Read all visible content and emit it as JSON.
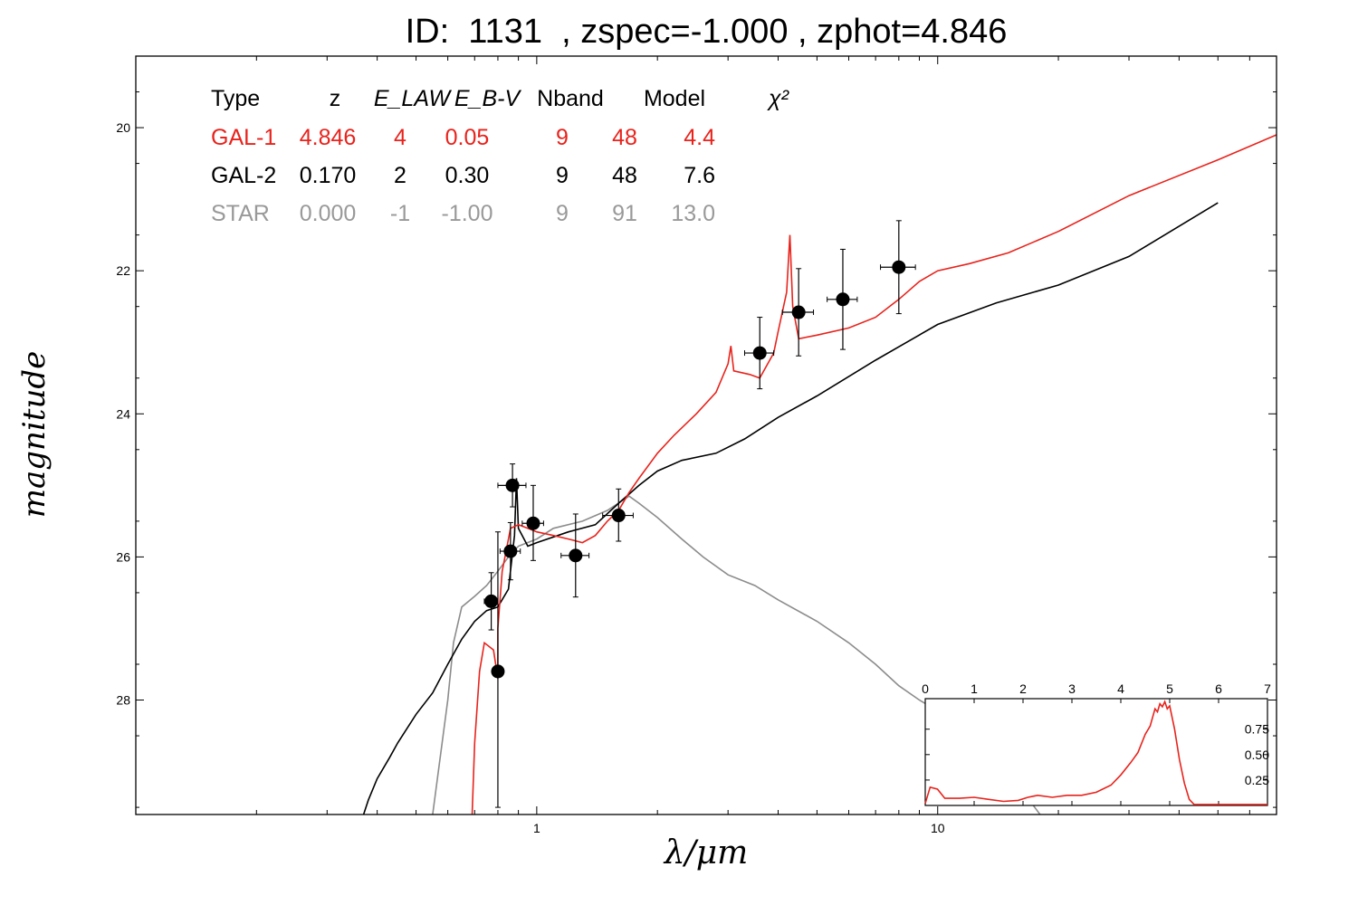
{
  "title": "ID:  1131  , zspec=-1.000 , zphot=4.846",
  "colors": {
    "gal1": "#e8231c",
    "gal2": "#000000",
    "star": "#8c8c8c",
    "photometry": "#000000"
  },
  "table": {
    "headers": [
      "Type",
      "z",
      "E_LAW",
      "E_B-V",
      "Nband",
      "Model",
      "χ²"
    ],
    "rows": [
      {
        "cells": [
          "GAL-1",
          "4.846",
          "4",
          "0.05",
          "9",
          "48",
          "4.4"
        ],
        "color": "#e8231c"
      },
      {
        "cells": [
          "GAL-2",
          "0.170",
          "2",
          "0.30",
          "9",
          "48",
          "7.6"
        ],
        "color": "#000000"
      },
      {
        "cells": [
          "STAR",
          "0.000",
          "-1",
          "-1.00",
          "9",
          "91",
          "13.0"
        ],
        "color": "#999999"
      }
    ]
  },
  "chart_data": [
    {
      "type": "line",
      "xlabel": "λ/μm",
      "ylabel": "magnitude",
      "xscale": "log",
      "xlim": [
        0.1,
        70
      ],
      "ylim": [
        29.6,
        19.0
      ],
      "y_inverted": true,
      "x_ticks": [
        1,
        10
      ],
      "y_ticks": [
        20,
        22,
        24,
        26,
        28
      ],
      "series": [
        {
          "key": "gal1",
          "name": "GAL-1",
          "color": "#e8231c",
          "points": [
            [
              0.69,
              29.6
            ],
            [
              0.7,
              28.6
            ],
            [
              0.72,
              27.6
            ],
            [
              0.74,
              27.2
            ],
            [
              0.76,
              27.25
            ],
            [
              0.78,
              27.3
            ],
            [
              0.8,
              27.7
            ],
            [
              0.8,
              27.0
            ],
            [
              0.82,
              26.2
            ],
            [
              0.84,
              25.9
            ],
            [
              0.86,
              25.6
            ],
            [
              0.9,
              25.55
            ],
            [
              0.95,
              25.6
            ],
            [
              1.0,
              25.65
            ],
            [
              1.1,
              25.7
            ],
            [
              1.2,
              25.75
            ],
            [
              1.3,
              25.8
            ],
            [
              1.4,
              25.7
            ],
            [
              1.5,
              25.5
            ],
            [
              1.6,
              25.35
            ],
            [
              1.7,
              25.1
            ],
            [
              1.8,
              24.9
            ],
            [
              2.0,
              24.55
            ],
            [
              2.2,
              24.3
            ],
            [
              2.5,
              24.0
            ],
            [
              2.8,
              23.7
            ],
            [
              3.0,
              23.3
            ],
            [
              3.05,
              23.05
            ],
            [
              3.1,
              23.4
            ],
            [
              3.4,
              23.45
            ],
            [
              3.6,
              23.5
            ],
            [
              3.9,
              23.15
            ],
            [
              4.0,
              22.85
            ],
            [
              4.2,
              22.3
            ],
            [
              4.28,
              21.5
            ],
            [
              4.35,
              22.5
            ],
            [
              4.5,
              22.95
            ],
            [
              5.0,
              22.9
            ],
            [
              6.0,
              22.8
            ],
            [
              7.0,
              22.65
            ],
            [
              8.0,
              22.4
            ],
            [
              9.0,
              22.15
            ],
            [
              10,
              22.0
            ],
            [
              12,
              21.9
            ],
            [
              15,
              21.75
            ],
            [
              20,
              21.45
            ],
            [
              30,
              20.95
            ],
            [
              50,
              20.45
            ],
            [
              70,
              20.1
            ]
          ]
        },
        {
          "key": "gal2",
          "name": "GAL-2",
          "color": "#000000",
          "points": [
            [
              0.37,
              29.6
            ],
            [
              0.38,
              29.4
            ],
            [
              0.4,
              29.1
            ],
            [
              0.43,
              28.8
            ],
            [
              0.45,
              28.6
            ],
            [
              0.5,
              28.2
            ],
            [
              0.55,
              27.9
            ],
            [
              0.6,
              27.5
            ],
            [
              0.65,
              27.15
            ],
            [
              0.7,
              26.9
            ],
            [
              0.75,
              26.75
            ],
            [
              0.8,
              26.7
            ],
            [
              0.85,
              26.45
            ],
            [
              0.88,
              25.7
            ],
            [
              0.89,
              24.9
            ],
            [
              0.9,
              25.6
            ],
            [
              0.95,
              25.85
            ],
            [
              1.0,
              25.8
            ],
            [
              1.2,
              25.65
            ],
            [
              1.4,
              25.55
            ],
            [
              1.6,
              25.25
            ],
            [
              1.8,
              25.0
            ],
            [
              2.0,
              24.8
            ],
            [
              2.3,
              24.65
            ],
            [
              2.8,
              24.55
            ],
            [
              3.3,
              24.35
            ],
            [
              4.0,
              24.05
            ],
            [
              5.0,
              23.75
            ],
            [
              7.0,
              23.25
            ],
            [
              10,
              22.75
            ],
            [
              14,
              22.45
            ],
            [
              20,
              22.2
            ],
            [
              30,
              21.8
            ],
            [
              50,
              21.05
            ]
          ]
        },
        {
          "key": "star",
          "name": "STAR",
          "color": "#8c8c8c",
          "points": [
            [
              0.55,
              29.6
            ],
            [
              0.6,
              28.0
            ],
            [
              0.62,
              27.2
            ],
            [
              0.65,
              26.7
            ],
            [
              0.7,
              26.55
            ],
            [
              0.75,
              26.4
            ],
            [
              0.8,
              26.2
            ],
            [
              0.85,
              26.0
            ],
            [
              0.9,
              25.85
            ],
            [
              1.0,
              25.75
            ],
            [
              1.1,
              25.6
            ],
            [
              1.3,
              25.5
            ],
            [
              1.5,
              25.35
            ],
            [
              1.7,
              25.15
            ],
            [
              1.8,
              25.25
            ],
            [
              2.0,
              25.45
            ],
            [
              2.3,
              25.75
            ],
            [
              2.6,
              26.0
            ],
            [
              3.0,
              26.25
            ],
            [
              3.5,
              26.4
            ],
            [
              4.0,
              26.6
            ],
            [
              5.0,
              26.9
            ],
            [
              6.0,
              27.2
            ],
            [
              7.0,
              27.5
            ],
            [
              8.0,
              27.8
            ],
            [
              9.0,
              28.0
            ],
            [
              10,
              28.15
            ],
            [
              12,
              28.5
            ],
            [
              15,
              29.0
            ],
            [
              18,
              29.6
            ]
          ]
        }
      ],
      "photometry": [
        {
          "x": 0.77,
          "y": 26.62,
          "xerr": [
            0.74,
            0.8
          ],
          "yerr": [
            26.22,
            27.02
          ]
        },
        {
          "x": 0.8,
          "y": 27.6,
          "xerr": [
            0.78,
            0.82
          ],
          "yerr": [
            25.65,
            29.5
          ]
        },
        {
          "x": 0.86,
          "y": 25.92,
          "xerr": [
            0.81,
            0.91
          ],
          "yerr": [
            25.52,
            26.32
          ]
        },
        {
          "x": 0.87,
          "y": 25.0,
          "xerr": [
            0.8,
            0.94
          ],
          "yerr": [
            24.7,
            25.3
          ]
        },
        {
          "x": 0.98,
          "y": 25.53,
          "xerr": [
            0.92,
            1.04
          ],
          "yerr": [
            25.0,
            26.05
          ]
        },
        {
          "x": 1.25,
          "y": 25.98,
          "xerr": [
            1.15,
            1.35
          ],
          "yerr": [
            25.4,
            26.56
          ]
        },
        {
          "x": 1.6,
          "y": 25.42,
          "xerr": [
            1.46,
            1.74
          ],
          "yerr": [
            25.05,
            25.78
          ]
        },
        {
          "x": 3.6,
          "y": 23.15,
          "xerr": [
            3.3,
            3.9
          ],
          "yerr": [
            22.65,
            23.65
          ]
        },
        {
          "x": 4.5,
          "y": 22.58,
          "xerr": [
            4.1,
            4.9
          ],
          "yerr": [
            21.97,
            23.19
          ]
        },
        {
          "x": 5.8,
          "y": 22.4,
          "xerr": [
            5.3,
            6.3
          ],
          "yerr": [
            21.7,
            23.1
          ]
        },
        {
          "x": 8.0,
          "y": 21.95,
          "xerr": [
            7.2,
            8.8
          ],
          "yerr": [
            21.3,
            22.6
          ]
        }
      ]
    },
    {
      "type": "line",
      "role": "inset",
      "xlim": [
        0,
        7
      ],
      "ylim": [
        0,
        1.05
      ],
      "x_ticks": [
        0,
        1,
        2,
        3,
        4,
        5,
        6,
        7
      ],
      "y_ticks": [
        0.25,
        0.5,
        0.75
      ],
      "series": [
        {
          "key": "pdz",
          "color": "#e8231c",
          "points": [
            [
              0,
              0.02
            ],
            [
              0.1,
              0.18
            ],
            [
              0.25,
              0.16
            ],
            [
              0.4,
              0.07
            ],
            [
              0.7,
              0.07
            ],
            [
              1.0,
              0.08
            ],
            [
              1.3,
              0.06
            ],
            [
              1.6,
              0.04
            ],
            [
              1.9,
              0.05
            ],
            [
              2.1,
              0.08
            ],
            [
              2.3,
              0.1
            ],
            [
              2.6,
              0.08
            ],
            [
              2.9,
              0.1
            ],
            [
              3.2,
              0.1
            ],
            [
              3.5,
              0.13
            ],
            [
              3.8,
              0.2
            ],
            [
              4.0,
              0.3
            ],
            [
              4.2,
              0.42
            ],
            [
              4.35,
              0.52
            ],
            [
              4.5,
              0.7
            ],
            [
              4.6,
              0.78
            ],
            [
              4.7,
              0.95
            ],
            [
              4.75,
              0.92
            ],
            [
              4.8,
              1.0
            ],
            [
              4.85,
              0.97
            ],
            [
              4.9,
              1.02
            ],
            [
              4.95,
              0.95
            ],
            [
              5.0,
              0.98
            ],
            [
              5.1,
              0.75
            ],
            [
              5.2,
              0.45
            ],
            [
              5.3,
              0.22
            ],
            [
              5.4,
              0.06
            ],
            [
              5.5,
              0.01
            ],
            [
              7.0,
              0.01
            ]
          ]
        }
      ]
    }
  ]
}
